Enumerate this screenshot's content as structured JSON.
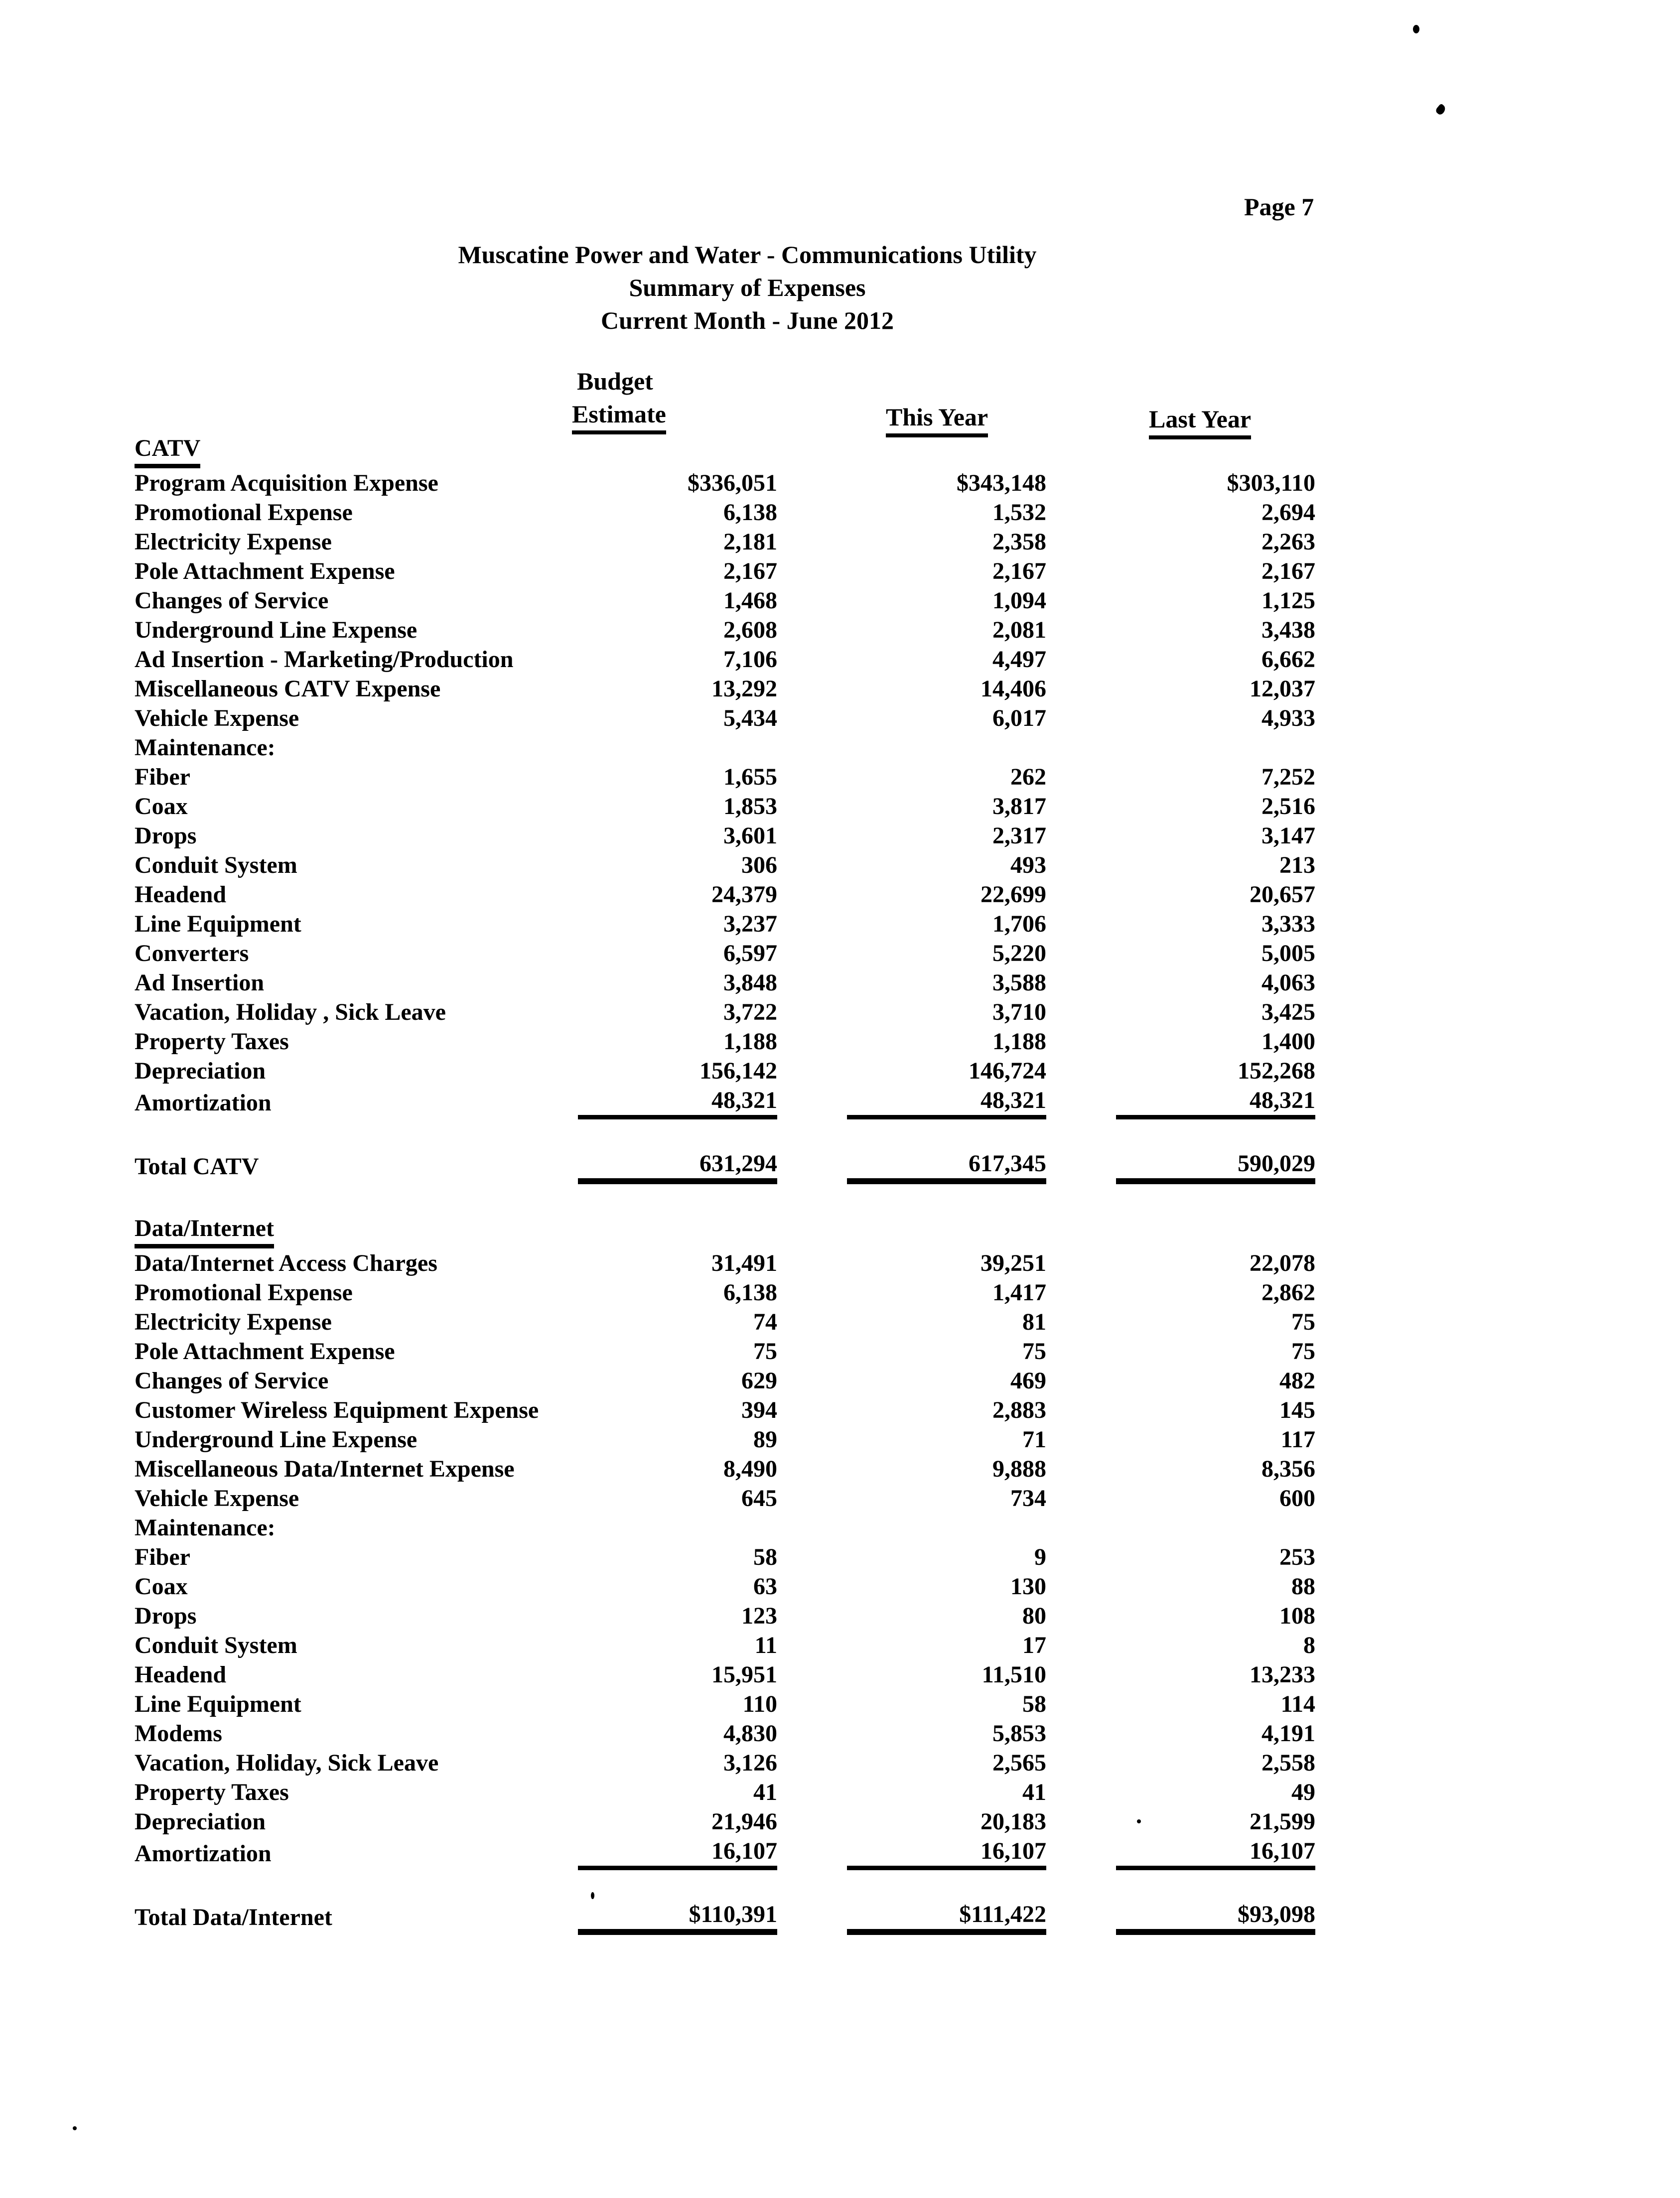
{
  "page": {
    "number_label": "Page 7"
  },
  "title": {
    "line1": "Muscatine Power and Water - Communications Utility",
    "line2": "Summary of Expenses",
    "line3": "Current Month - June 2012"
  },
  "columns": {
    "budget_line1": "Budget",
    "budget_line2": "Estimate",
    "this_year": "This Year",
    "last_year": "Last Year"
  },
  "sections": [
    {
      "name": "CATV",
      "rows": [
        {
          "label": "Program Acquisition Expense",
          "values": [
            "$336,051",
            "$343,148",
            "$303,110"
          ]
        },
        {
          "label": "Promotional Expense",
          "values": [
            "6,138",
            "1,532",
            "2,694"
          ]
        },
        {
          "label": "Electricity Expense",
          "values": [
            "2,181",
            "2,358",
            "2,263"
          ]
        },
        {
          "label": "Pole Attachment Expense",
          "values": [
            "2,167",
            "2,167",
            "2,167"
          ]
        },
        {
          "label": "Changes of Service",
          "values": [
            "1,468",
            "1,094",
            "1,125"
          ]
        },
        {
          "label": "Underground Line Expense",
          "values": [
            "2,608",
            "2,081",
            "3,438"
          ]
        },
        {
          "label": "Ad Insertion - Marketing/Production",
          "values": [
            "7,106",
            "4,497",
            "6,662"
          ]
        },
        {
          "label": "Miscellaneous CATV Expense",
          "values": [
            "13,292",
            "14,406",
            "12,037"
          ]
        },
        {
          "label": "Vehicle Expense",
          "values": [
            "5,434",
            "6,017",
            "4,933"
          ]
        },
        {
          "label": "Maintenance:",
          "values": [
            "",
            "",
            ""
          ],
          "subheader": true
        },
        {
          "label": "Fiber",
          "indent": true,
          "values": [
            "1,655",
            "262",
            "7,252"
          ]
        },
        {
          "label": "Coax",
          "indent": true,
          "values": [
            "1,853",
            "3,817",
            "2,516"
          ]
        },
        {
          "label": "Drops",
          "indent": true,
          "values": [
            "3,601",
            "2,317",
            "3,147"
          ]
        },
        {
          "label": "Conduit System",
          "indent": true,
          "values": [
            "306",
            "493",
            "213"
          ]
        },
        {
          "label": "Headend",
          "indent": true,
          "values": [
            "24,379",
            "22,699",
            "20,657"
          ]
        },
        {
          "label": "Line Equipment",
          "indent": true,
          "values": [
            "3,237",
            "1,706",
            "3,333"
          ]
        },
        {
          "label": "Converters",
          "indent": true,
          "values": [
            "6,597",
            "5,220",
            "5,005"
          ]
        },
        {
          "label": "Ad Insertion",
          "indent": true,
          "values": [
            "3,848",
            "3,588",
            "4,063"
          ]
        },
        {
          "label": "Vacation, Holiday , Sick Leave",
          "values": [
            "3,722",
            "3,710",
            "3,425"
          ]
        },
        {
          "label": "Property Taxes",
          "values": [
            "1,188",
            "1,188",
            "1,400"
          ]
        },
        {
          "label": "Depreciation",
          "values": [
            "156,142",
            "146,724",
            "152,268"
          ]
        },
        {
          "label": "Amortization",
          "values": [
            "48,321",
            "48,321",
            "48,321"
          ],
          "rule_below": true
        }
      ],
      "total": {
        "label": "Total CATV",
        "values": [
          "631,294",
          "617,345",
          "590,029"
        ]
      }
    },
    {
      "name": "Data/Internet",
      "rows": [
        {
          "label": "Data/Internet Access Charges",
          "values": [
            "31,491",
            "39,251",
            "22,078"
          ]
        },
        {
          "label": "Promotional Expense",
          "values": [
            "6,138",
            "1,417",
            "2,862"
          ]
        },
        {
          "label": "Electricity Expense",
          "values": [
            "74",
            "81",
            "75"
          ]
        },
        {
          "label": "Pole Attachment Expense",
          "values": [
            "75",
            "75",
            "75"
          ]
        },
        {
          "label": "Changes of Service",
          "values": [
            "629",
            "469",
            "482"
          ]
        },
        {
          "label": "Customer Wireless Equipment Expense",
          "values": [
            "394",
            "2,883",
            "145"
          ]
        },
        {
          "label": "Underground Line Expense",
          "values": [
            "89",
            "71",
            "117"
          ]
        },
        {
          "label": "Miscellaneous Data/Internet Expense",
          "values": [
            "8,490",
            "9,888",
            "8,356"
          ]
        },
        {
          "label": "Vehicle Expense",
          "values": [
            "645",
            "734",
            "600"
          ]
        },
        {
          "label": "Maintenance:",
          "values": [
            "",
            "",
            ""
          ],
          "subheader": true
        },
        {
          "label": "Fiber",
          "indent": true,
          "values": [
            "58",
            "9",
            "253"
          ]
        },
        {
          "label": "Coax",
          "indent": true,
          "values": [
            "63",
            "130",
            "88"
          ]
        },
        {
          "label": "Drops",
          "indent": true,
          "values": [
            "123",
            "80",
            "108"
          ]
        },
        {
          "label": "Conduit System",
          "indent": true,
          "values": [
            "11",
            "17",
            "8"
          ]
        },
        {
          "label": "Headend",
          "indent": true,
          "values": [
            "15,951",
            "11,510",
            "13,233"
          ]
        },
        {
          "label": "Line Equipment",
          "indent": true,
          "values": [
            "110",
            "58",
            "114"
          ]
        },
        {
          "label": "Modems",
          "indent": true,
          "values": [
            "4,830",
            "5,853",
            "4,191"
          ]
        },
        {
          "label": "Vacation, Holiday, Sick Leave",
          "values": [
            "3,126",
            "2,565",
            "2,558"
          ]
        },
        {
          "label": "Property Taxes",
          "values": [
            "41",
            "41",
            "49"
          ]
        },
        {
          "label": "Depreciation",
          "values": [
            "21,946",
            "20,183",
            "21,599"
          ]
        },
        {
          "label": "Amortization",
          "values": [
            "16,107",
            "16,107",
            "16,107"
          ],
          "rule_below": true
        }
      ],
      "total": {
        "label": "Total Data/Internet",
        "values": [
          "$110,391",
          "$111,422",
          "$93,098"
        ]
      }
    }
  ]
}
